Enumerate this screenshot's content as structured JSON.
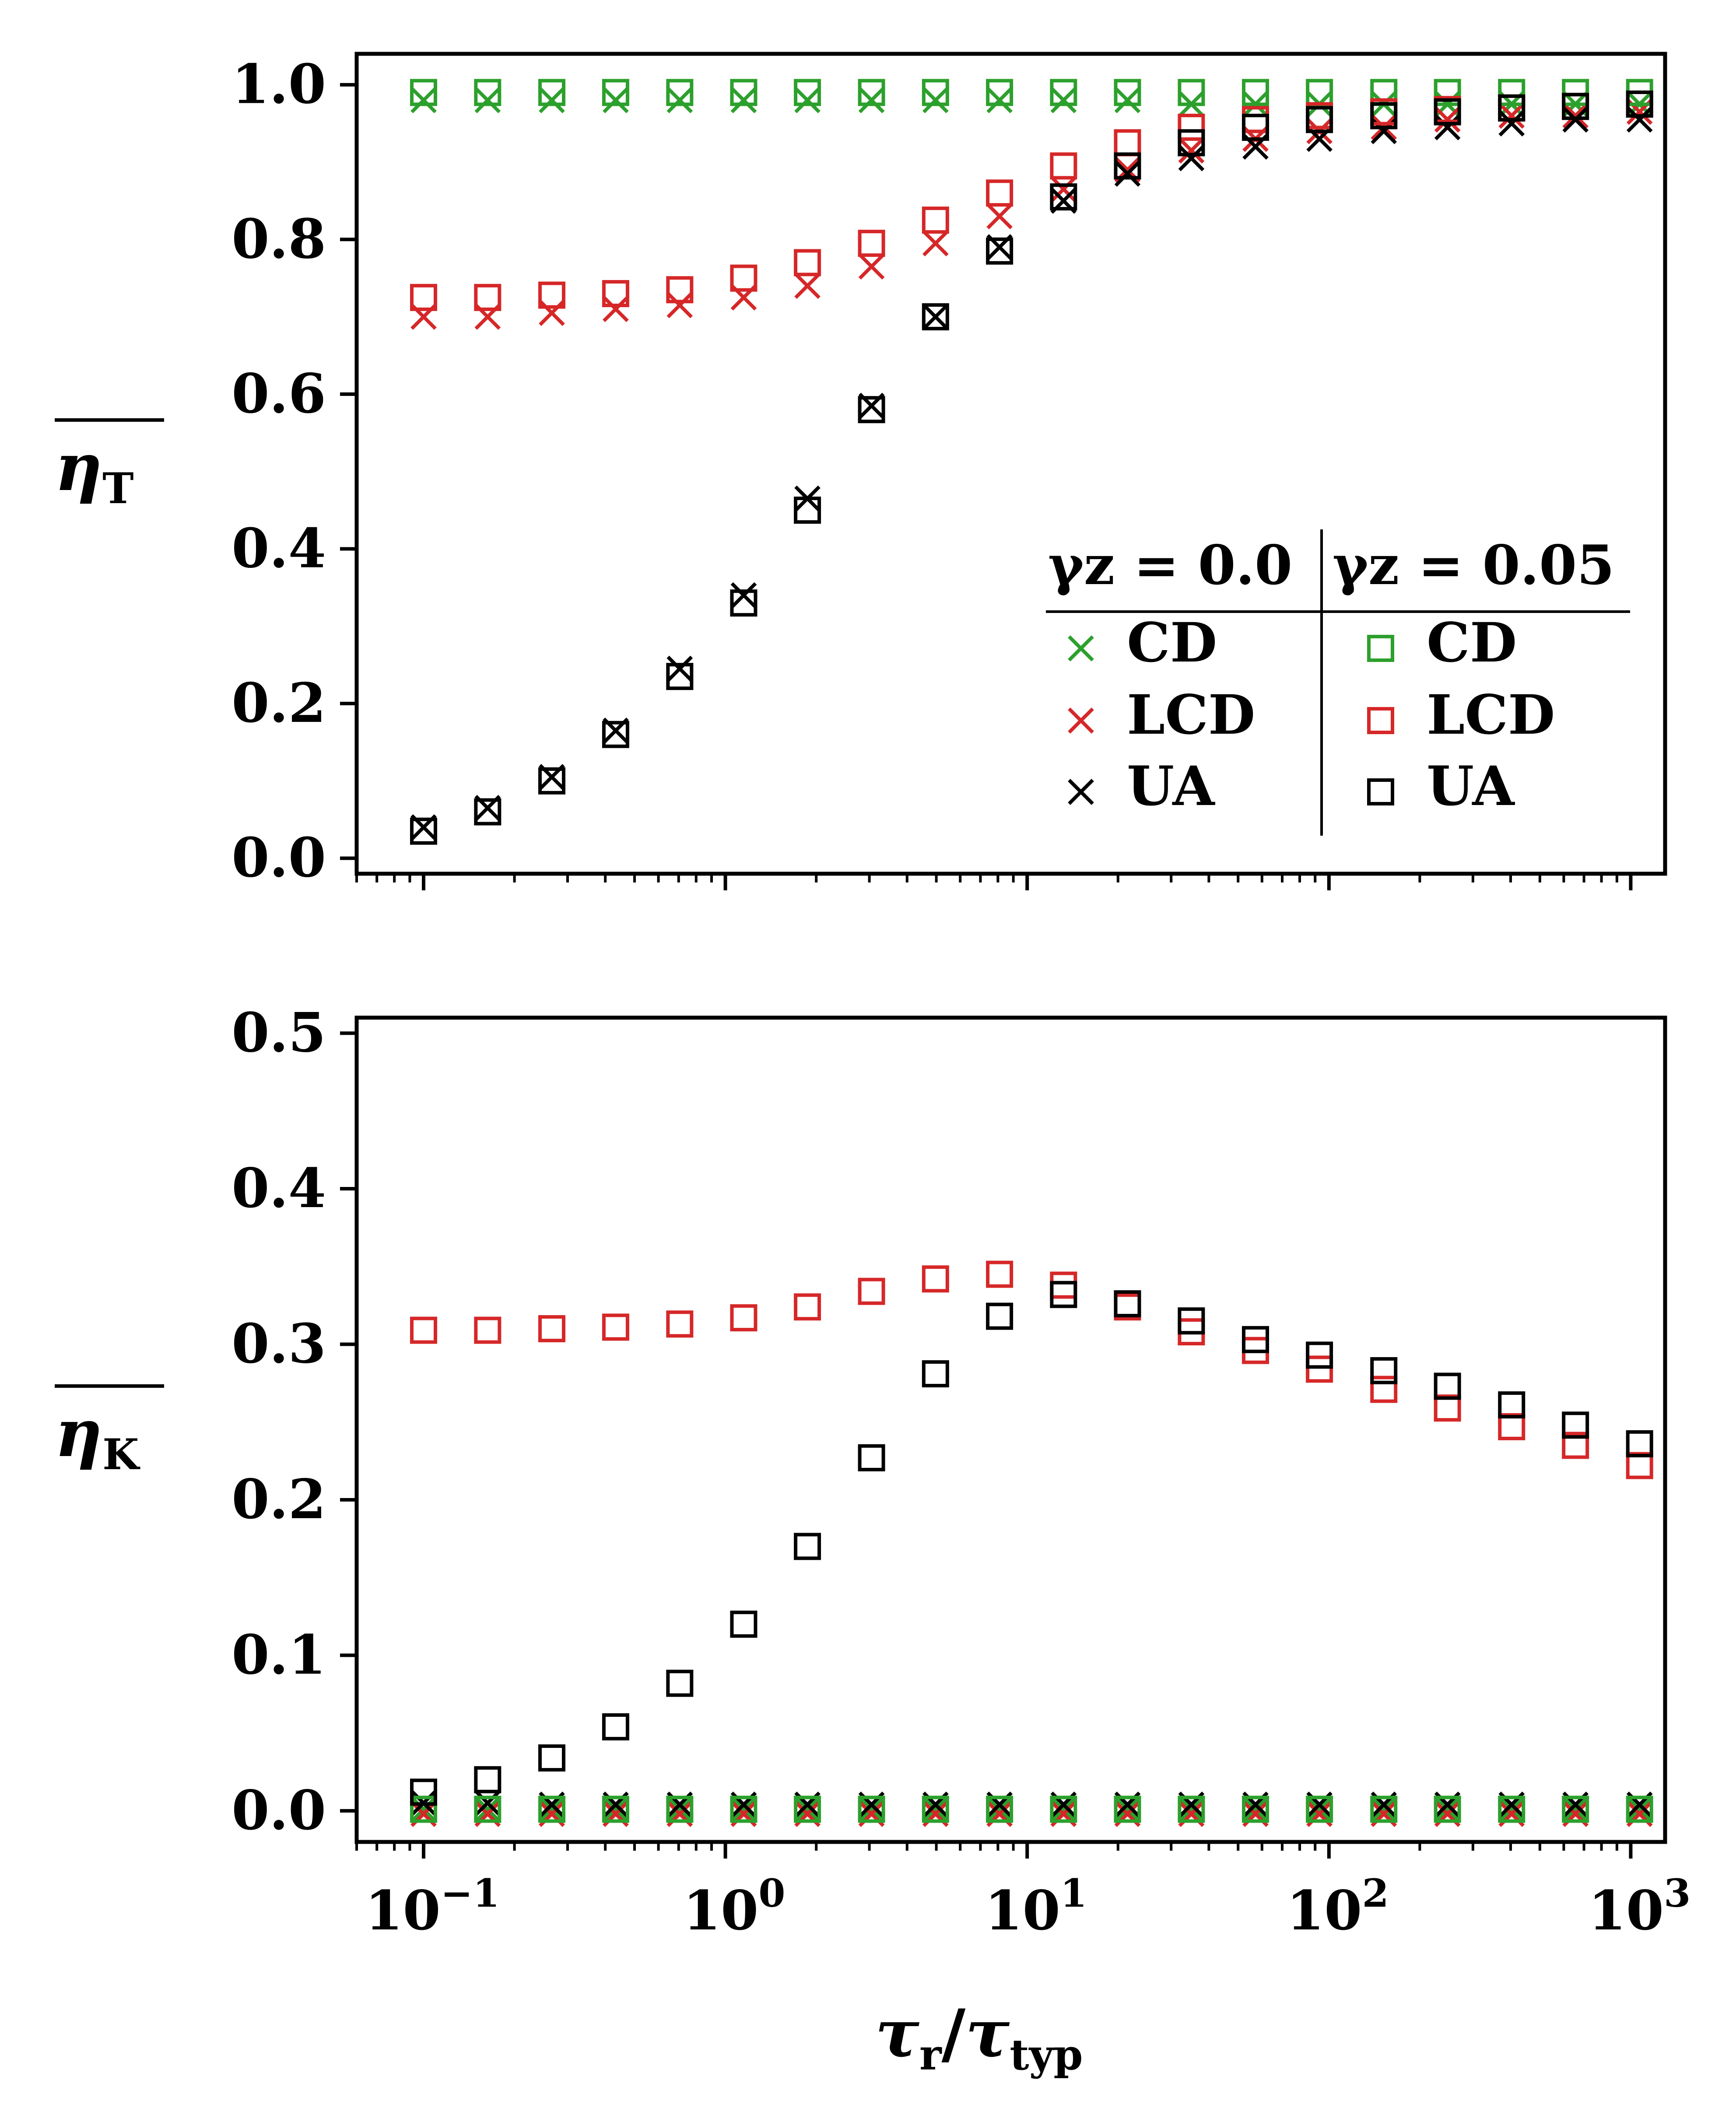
{
  "chart_data": [
    {
      "type": "scatter",
      "id": "top",
      "ylabel_main": "η",
      "ylabel_sub": "T",
      "xscale": "log",
      "xlim": [
        0.06,
        1300
      ],
      "ylim": [
        -0.02,
        1.04
      ],
      "yticks": [
        "0.0",
        "0.2",
        "0.4",
        "0.6",
        "0.8",
        "1.0"
      ],
      "ytick_values": [
        0.0,
        0.2,
        0.4,
        0.6,
        0.8,
        1.0
      ],
      "x": [
        0.1,
        0.163,
        0.266,
        0.433,
        0.706,
        1.15,
        1.87,
        3.05,
        4.97,
        8.1,
        13.2,
        21.5,
        35.0,
        57.1,
        93.0,
        152,
        247,
        403,
        656,
        1070
      ],
      "series": [
        {
          "name": "CD",
          "group": "γz = 0.0",
          "marker": "x",
          "color": "#2ca02c",
          "values": [
            0.98,
            0.98,
            0.98,
            0.98,
            0.98,
            0.98,
            0.98,
            0.98,
            0.98,
            0.98,
            0.98,
            0.98,
            0.975,
            0.975,
            0.975,
            0.975,
            0.975,
            0.975,
            0.975,
            0.975
          ]
        },
        {
          "name": "LCD",
          "group": "γz = 0.0",
          "marker": "x",
          "color": "#d62728",
          "values": [
            0.7,
            0.7,
            0.705,
            0.71,
            0.715,
            0.725,
            0.74,
            0.765,
            0.795,
            0.83,
            0.865,
            0.89,
            0.915,
            0.93,
            0.94,
            0.945,
            0.955,
            0.96,
            0.96,
            0.965
          ]
        },
        {
          "name": "UA",
          "group": "γz = 0.0",
          "marker": "x",
          "color": "#000000",
          "values": [
            0.04,
            0.065,
            0.105,
            0.165,
            0.245,
            0.34,
            0.465,
            0.585,
            0.7,
            0.79,
            0.85,
            0.885,
            0.905,
            0.92,
            0.93,
            0.94,
            0.945,
            0.95,
            0.955,
            0.955
          ]
        },
        {
          "name": "CD",
          "group": "γz = 0.05",
          "marker": "square",
          "color": "#2ca02c",
          "values": [
            0.99,
            0.99,
            0.99,
            0.99,
            0.99,
            0.99,
            0.99,
            0.99,
            0.99,
            0.99,
            0.99,
            0.99,
            0.99,
            0.99,
            0.99,
            0.99,
            0.99,
            0.99,
            0.99,
            0.99
          ]
        },
        {
          "name": "LCD",
          "group": "γz = 0.05",
          "marker": "square",
          "color": "#d62728",
          "values": [
            0.725,
            0.725,
            0.728,
            0.73,
            0.735,
            0.75,
            0.77,
            0.795,
            0.825,
            0.86,
            0.895,
            0.925,
            0.945,
            0.955,
            0.96,
            0.965,
            0.968,
            0.97,
            0.972,
            0.975
          ]
        },
        {
          "name": "UA",
          "group": "γz = 0.05",
          "marker": "square",
          "color": "#000000",
          "values": [
            0.035,
            0.06,
            0.1,
            0.16,
            0.235,
            0.33,
            0.45,
            0.58,
            0.7,
            0.785,
            0.855,
            0.895,
            0.925,
            0.945,
            0.955,
            0.96,
            0.965,
            0.97,
            0.972,
            0.975
          ]
        }
      ],
      "legend": {
        "placement": "lower-right",
        "headers": [
          "γz = 0.0",
          "γz = 0.05"
        ],
        "entries_left": [
          {
            "label": "CD",
            "marker": "x",
            "color": "#2ca02c"
          },
          {
            "label": "LCD",
            "marker": "x",
            "color": "#d62728"
          },
          {
            "label": "UA",
            "marker": "x",
            "color": "#000000"
          }
        ],
        "entries_right": [
          {
            "label": "CD",
            "marker": "square",
            "color": "#2ca02c"
          },
          {
            "label": "LCD",
            "marker": "square",
            "color": "#d62728"
          },
          {
            "label": "UA",
            "marker": "square",
            "color": "#000000"
          }
        ]
      }
    },
    {
      "type": "scatter",
      "id": "bottom",
      "ylabel_main": "η",
      "ylabel_sub": "K",
      "xlabel_main": "τ",
      "xlabel_sub1": "r",
      "xlabel_slash": "/",
      "xlabel_sub2": "typ",
      "xscale": "log",
      "xlim": [
        0.06,
        1300
      ],
      "ylim": [
        -0.02,
        0.51
      ],
      "yticks": [
        "0.0",
        "0.1",
        "0.2",
        "0.3",
        "0.4",
        "0.5"
      ],
      "ytick_values": [
        0.0,
        0.1,
        0.2,
        0.3,
        0.4,
        0.5
      ],
      "xticks_base": [
        "10",
        "10",
        "10",
        "10",
        "10"
      ],
      "xticks_exp": [
        "−1",
        "0",
        "1",
        "2",
        "3"
      ],
      "xtick_values": [
        0.1,
        1,
        10,
        100,
        1000
      ],
      "x": [
        0.1,
        0.163,
        0.266,
        0.433,
        0.706,
        1.15,
        1.87,
        3.05,
        4.97,
        8.1,
        13.2,
        21.5,
        35.0,
        57.1,
        93.0,
        152,
        247,
        403,
        656,
        1070
      ],
      "series": [
        {
          "name": "CD",
          "group": "γz = 0.0",
          "marker": "x",
          "color": "#2ca02c",
          "values": [
            0.001,
            0.001,
            0.001,
            0.001,
            0.001,
            0.001,
            0.001,
            0.001,
            0.001,
            0.001,
            0.001,
            0.001,
            0.001,
            0.001,
            0.001,
            0.001,
            0.001,
            0.001,
            0.001,
            0.001
          ]
        },
        {
          "name": "LCD",
          "group": "γz = 0.0",
          "marker": "x",
          "color": "#d62728",
          "values": [
            -0.002,
            -0.002,
            -0.002,
            -0.002,
            -0.002,
            -0.002,
            -0.002,
            -0.002,
            -0.002,
            -0.002,
            -0.002,
            -0.002,
            -0.002,
            -0.002,
            -0.002,
            -0.002,
            -0.002,
            -0.002,
            -0.002,
            -0.002
          ]
        },
        {
          "name": "UA",
          "group": "γz = 0.0",
          "marker": "x",
          "color": "#000000",
          "values": [
            0.005,
            0.005,
            0.004,
            0.004,
            0.004,
            0.004,
            0.004,
            0.004,
            0.004,
            0.004,
            0.004,
            0.004,
            0.004,
            0.004,
            0.004,
            0.004,
            0.004,
            0.004,
            0.004,
            0.004
          ]
        },
        {
          "name": "CD",
          "group": "γz = 0.05",
          "marker": "square",
          "color": "#2ca02c",
          "values": [
            0.001,
            0.001,
            0.001,
            0.001,
            0.001,
            0.001,
            0.001,
            0.001,
            0.001,
            0.001,
            0.001,
            0.001,
            0.001,
            0.001,
            0.001,
            0.001,
            0.001,
            0.001,
            0.001,
            0.001
          ]
        },
        {
          "name": "LCD",
          "group": "γz = 0.05",
          "marker": "square",
          "color": "#d62728",
          "values": [
            0.309,
            0.309,
            0.31,
            0.311,
            0.313,
            0.317,
            0.324,
            0.334,
            0.342,
            0.345,
            0.338,
            0.324,
            0.308,
            0.296,
            0.284,
            0.271,
            0.259,
            0.247,
            0.235,
            0.222
          ]
        },
        {
          "name": "UA",
          "group": "γz = 0.05",
          "marker": "square",
          "color": "#000000",
          "values": [
            0.012,
            0.02,
            0.034,
            0.054,
            0.082,
            0.12,
            0.17,
            0.227,
            0.281,
            0.318,
            0.332,
            0.326,
            0.315,
            0.303,
            0.293,
            0.283,
            0.273,
            0.261,
            0.248,
            0.236
          ]
        }
      ]
    }
  ]
}
